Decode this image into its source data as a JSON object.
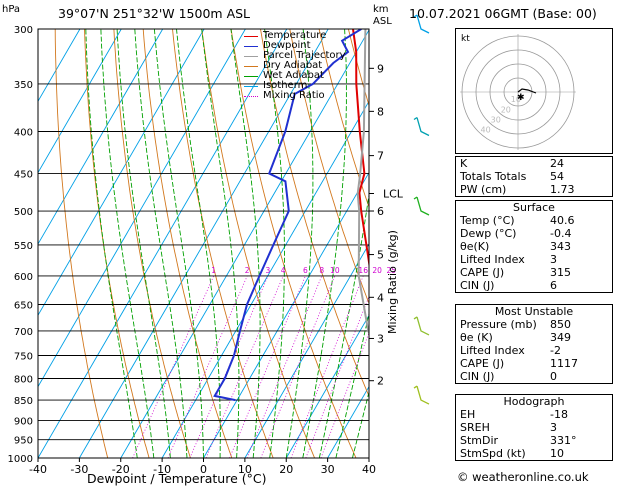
{
  "header": {
    "location": "39°07'N  251°32'W  1500m  ASL",
    "datetime": "10.07.2021  06GMT  (Base: 00)",
    "left_unit": "hPa",
    "right_unit_top": "km",
    "right_unit_bottom": "ASL"
  },
  "chart_data": {
    "type": "line",
    "xlabel": "Dewpoint / Temperature (°C)",
    "ylabel_right": "Mixing Ratio (g/kg)",
    "pressure_ticks": [
      300,
      350,
      400,
      450,
      500,
      550,
      600,
      650,
      700,
      750,
      800,
      850,
      900,
      950,
      1000
    ],
    "temperature_ticks": [
      -40,
      -30,
      -20,
      -10,
      0,
      10,
      20,
      30,
      40
    ],
    "xlim": [
      -40,
      40
    ],
    "ylim": [
      1000,
      300
    ],
    "height_ticks": [
      {
        "km": "9",
        "p": 335
      },
      {
        "km": "8",
        "p": 378
      },
      {
        "km": "7",
        "p": 428
      },
      {
        "km": "6",
        "p": 500
      },
      {
        "km": "5",
        "p": 565
      },
      {
        "km": "4",
        "p": 637
      },
      {
        "km": "3",
        "p": 715
      },
      {
        "km": "2",
        "p": 805
      }
    ],
    "lcl": {
      "label": "LCL",
      "p": 476
    },
    "mixing_ratio_labels": [
      "1",
      "2",
      "3",
      "4",
      "6",
      "8",
      "10",
      "16",
      "20",
      "25"
    ],
    "mixing_ratio_values": [
      1,
      2,
      3,
      4,
      6,
      8,
      10,
      16,
      20,
      25
    ],
    "legend": [
      "Temperature",
      "Dewpoint",
      "Parcel Trajectory",
      "Dry Adiabat",
      "Wet Adiabat",
      "Isotherm",
      "Mixing Ratio"
    ],
    "series": [
      {
        "name": "Temperature",
        "color": "#e00000",
        "points": [
          [
            850,
            40.6
          ],
          [
            800,
            35.5
          ],
          [
            750,
            30.5
          ],
          [
            700,
            25.3
          ],
          [
            650,
            20.5
          ],
          [
            600,
            15
          ],
          [
            550,
            9.5
          ],
          [
            500,
            3.5
          ],
          [
            475,
            0.5
          ],
          [
            450,
            -1
          ],
          [
            400,
            -8
          ],
          [
            350,
            -15.5
          ],
          [
            320,
            -20
          ],
          [
            300,
            -24
          ]
        ]
      },
      {
        "name": "Dewpoint",
        "color": "#2030d0",
        "points": [
          [
            850,
            -0.4
          ],
          [
            840,
            -6
          ],
          [
            800,
            -6
          ],
          [
            750,
            -7
          ],
          [
            700,
            -9
          ],
          [
            650,
            -11
          ],
          [
            600,
            -12
          ],
          [
            550,
            -13
          ],
          [
            500,
            -14
          ],
          [
            460,
            -19
          ],
          [
            450,
            -24
          ],
          [
            400,
            -26
          ],
          [
            360,
            -29
          ],
          [
            350,
            -26
          ],
          [
            330,
            -24
          ],
          [
            320,
            -22
          ],
          [
            310,
            -25
          ],
          [
            300,
            -22
          ]
        ]
      },
      {
        "name": "Parcel Trajectory",
        "color": "#a0a0a0",
        "points": [
          [
            850,
            40.6
          ],
          [
            800,
            34
          ],
          [
            700,
            22
          ],
          [
            600,
            12
          ],
          [
            500,
            3
          ],
          [
            476,
            0.2
          ],
          [
            450,
            -2
          ],
          [
            400,
            -7
          ],
          [
            350,
            -13.5
          ],
          [
            300,
            -21
          ]
        ]
      }
    ],
    "legend_colors": {
      "Temperature": "#e00000",
      "Dewpoint": "#2030d0",
      "Parcel Trajectory": "#a0a0a0",
      "Dry Adiabat": "#d2781e",
      "Wet Adiabat": "#00a000",
      "Isotherm": "#00a0e6",
      "Mixing Ratio": "#d000d0"
    }
  },
  "hodograph": {
    "unit_label": "kt",
    "ring_labels": [
      "10",
      "20",
      "30",
      "40"
    ]
  },
  "indices": [
    {
      "label": "K",
      "value": "24"
    },
    {
      "label": "Totals Totals",
      "value": "54"
    },
    {
      "label": "PW (cm)",
      "value": "1.73"
    }
  ],
  "surface": {
    "title": "Surface",
    "rows": [
      {
        "label": "Temp (°C)",
        "value": "40.6"
      },
      {
        "label": "Dewp (°C)",
        "value": "-0.4"
      },
      {
        "label": "θe(K)",
        "value": "343"
      },
      {
        "label": "Lifted Index",
        "value": "3"
      },
      {
        "label": "CAPE (J)",
        "value": "315"
      },
      {
        "label": "CIN (J)",
        "value": "6"
      }
    ]
  },
  "most_unstable": {
    "title": "Most Unstable",
    "rows": [
      {
        "label": "Pressure (mb)",
        "value": "850"
      },
      {
        "label": "θe (K)",
        "value": "349"
      },
      {
        "label": "Lifted Index",
        "value": "-2"
      },
      {
        "label": "CAPE (J)",
        "value": "1117"
      },
      {
        "label": "CIN (J)",
        "value": "0"
      }
    ]
  },
  "hodograph_stats": {
    "title": "Hodograph",
    "rows": [
      {
        "label": "EH",
        "value": "-18"
      },
      {
        "label": "SREH",
        "value": "3"
      },
      {
        "label": "StmDir",
        "value": "331°"
      },
      {
        "label": "StmSpd (kt)",
        "value": "10"
      }
    ]
  },
  "credit": "© weatheronline.co.uk"
}
